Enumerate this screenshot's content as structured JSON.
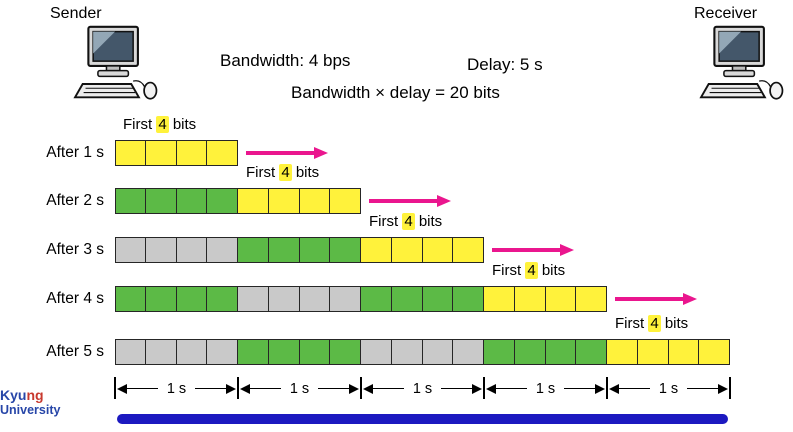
{
  "header": {
    "sender_label": "Sender",
    "receiver_label": "Receiver",
    "bandwidth_text": "Bandwidth: 4 bps",
    "delay_text": "Delay: 5 s",
    "product_text": "Bandwidth × delay = 20 bits"
  },
  "labels": {
    "first_prefix": "First ",
    "first_num": "4",
    "first_suffix": " bits"
  },
  "bits_per_group": 4,
  "rows": [
    {
      "label": "After 1 s",
      "groups": [
        "yellow"
      ],
      "arrow": true
    },
    {
      "label": "After 2 s",
      "groups": [
        "green",
        "yellow"
      ],
      "arrow": true
    },
    {
      "label": "After 3 s",
      "groups": [
        "gray",
        "green",
        "yellow"
      ],
      "arrow": true
    },
    {
      "label": "After 4 s",
      "groups": [
        "green",
        "gray",
        "green",
        "yellow"
      ],
      "arrow": true
    },
    {
      "label": "After 5 s",
      "groups": [
        "gray",
        "green",
        "gray",
        "green",
        "yellow"
      ],
      "arrow": false
    }
  ],
  "timeline": {
    "segments": [
      "1 s",
      "1 s",
      "1 s",
      "1 s",
      "1 s"
    ]
  },
  "watermark": {
    "line1_blue": "Kyu",
    "line1_red": "ng",
    "line2": "University"
  },
  "colors": {
    "yellow": "#FFF23B",
    "green": "#5CBA46",
    "gray": "#C9C9C9",
    "arrow_pink": "#EA168E",
    "link_bar_blue": "#1C19C0",
    "watermark_blue": "#2746A8",
    "watermark_red": "#C8392E"
  }
}
